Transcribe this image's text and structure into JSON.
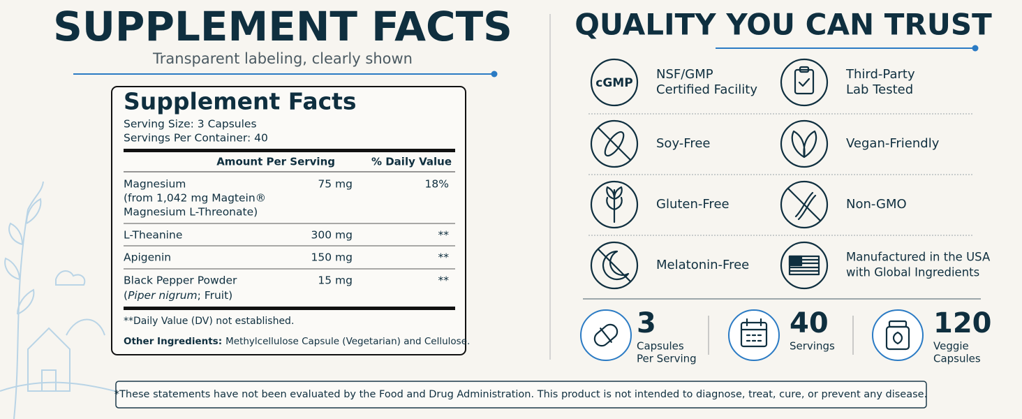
{
  "left": {
    "title": "SUPPLEMENT FACTS",
    "subtitle": "Transparent labeling, clearly shown"
  },
  "facts": {
    "title": "Supplement Facts",
    "serving_size": "Serving Size: 3 Capsules",
    "servings_per_container": "Servings Per Container: 40",
    "header": [
      "Amount Per Serving",
      "% Daily Value"
    ],
    "rows": [
      {
        "name": [
          "Magnesium",
          "(from 1,042 mg Magtein®",
          "Magnesium L-Threonate)"
        ],
        "amount": "75 mg",
        "dv": "18%"
      },
      {
        "name": [
          "L-Theanine"
        ],
        "amount": "300 mg",
        "dv": "**"
      },
      {
        "name": [
          "Apigenin"
        ],
        "amount": "150 mg",
        "dv": "**"
      },
      {
        "name": [
          "Black Pepper Powder"
        ],
        "source": [
          "(",
          "Piper nigrum",
          "; Fruit)"
        ],
        "amount": "15 mg",
        "dv": "**"
      }
    ],
    "footnote": "**Daily Value (DV) not established.",
    "other_label": "Other Ingredients:",
    "other_text": "Methylcellulose Capsule (Vegetarian) and Cellulose."
  },
  "right": {
    "title": "QUALITY YOU CAN TRUST",
    "icon_text": "cGMP",
    "features": [
      {
        "label": [
          "NSF/GMP",
          "Certified Facility"
        ]
      },
      {
        "label": [
          "Third-Party",
          "Lab Tested"
        ]
      },
      {
        "label": [
          "Soy-Free"
        ]
      },
      {
        "label": [
          "Vegan-Friendly"
        ]
      },
      {
        "label": [
          "Gluten-Free"
        ]
      },
      {
        "label": [
          "Non-GMO"
        ]
      },
      {
        "label": [
          "Melatonin-Free"
        ]
      },
      {
        "label": [
          "Manufactured in the USA",
          "with Global Ingredients"
        ]
      }
    ],
    "stats": [
      {
        "number": "3",
        "label": [
          "Capsules",
          "Per Serving"
        ]
      },
      {
        "number": "40",
        "label": [
          "Servings"
        ]
      },
      {
        "number": "120",
        "label": [
          "Veggie",
          "Capsules"
        ]
      }
    ]
  },
  "disclaimer": "*These statements have not been evaluated by the Food and Drug Administration. This product is not intended to diagnose, treat, cure, or prevent any disease."
}
